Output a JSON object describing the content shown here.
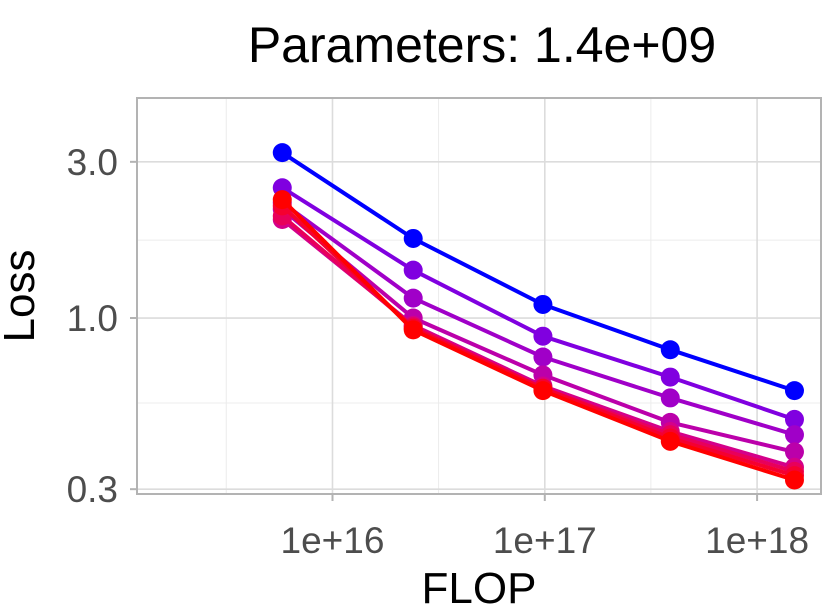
{
  "chart_data": {
    "type": "line",
    "title": "Parameters: 1.4e+09",
    "xlabel": "FLOP",
    "ylabel": "Loss",
    "x_scale": "log10",
    "y_scale": "log10",
    "xlim": [
      1200000000000000.0,
      2e+18
    ],
    "ylim": [
      0.29,
      4.7
    ],
    "x_ticks": [
      {
        "value": 1e+16,
        "label": "1e+16"
      },
      {
        "value": 1e+17,
        "label": "1e+17"
      },
      {
        "value": 1e+18,
        "label": "1e+18"
      }
    ],
    "y_ticks": [
      {
        "value": 0.3,
        "label": "0.3"
      },
      {
        "value": 1.0,
        "label": "1.0"
      },
      {
        "value": 3.0,
        "label": "3.0"
      }
    ],
    "x_minor_ticks": [
      3160000000000000.0,
      3.16e+16,
      3.16e+17
    ],
    "y_minor_ticks": [
      0.55,
      1.73
    ],
    "grid": true,
    "legend": "none",
    "x": [
      5800000000000000.0,
      2.4e+16,
      9.8e+16,
      3.9e+17,
      1.5e+18
    ],
    "series": [
      {
        "color": "#0000ff",
        "values": [
          3.2,
          1.75,
          1.1,
          0.8,
          0.6
        ]
      },
      {
        "color": "#8000e0",
        "values": [
          2.5,
          1.4,
          0.88,
          0.66,
          0.49
        ]
      },
      {
        "color": "#a000c8",
        "values": [
          2.25,
          1.15,
          0.76,
          0.57,
          0.44
        ]
      },
      {
        "color": "#bb00aa",
        "values": [
          2.15,
          1.0,
          0.67,
          0.48,
          0.39
        ]
      },
      {
        "color": "#d4008a",
        "values": [
          2.0,
          0.95,
          0.62,
          0.45,
          0.35
        ]
      },
      {
        "color": "#e8005a",
        "values": [
          2.05,
          0.94,
          0.61,
          0.44,
          0.34
        ]
      },
      {
        "color": "#f50030",
        "values": [
          2.2,
          0.93,
          0.61,
          0.43,
          0.33
        ]
      },
      {
        "color": "#ff0000",
        "values": [
          2.3,
          0.92,
          0.6,
          0.42,
          0.32
        ]
      }
    ]
  }
}
